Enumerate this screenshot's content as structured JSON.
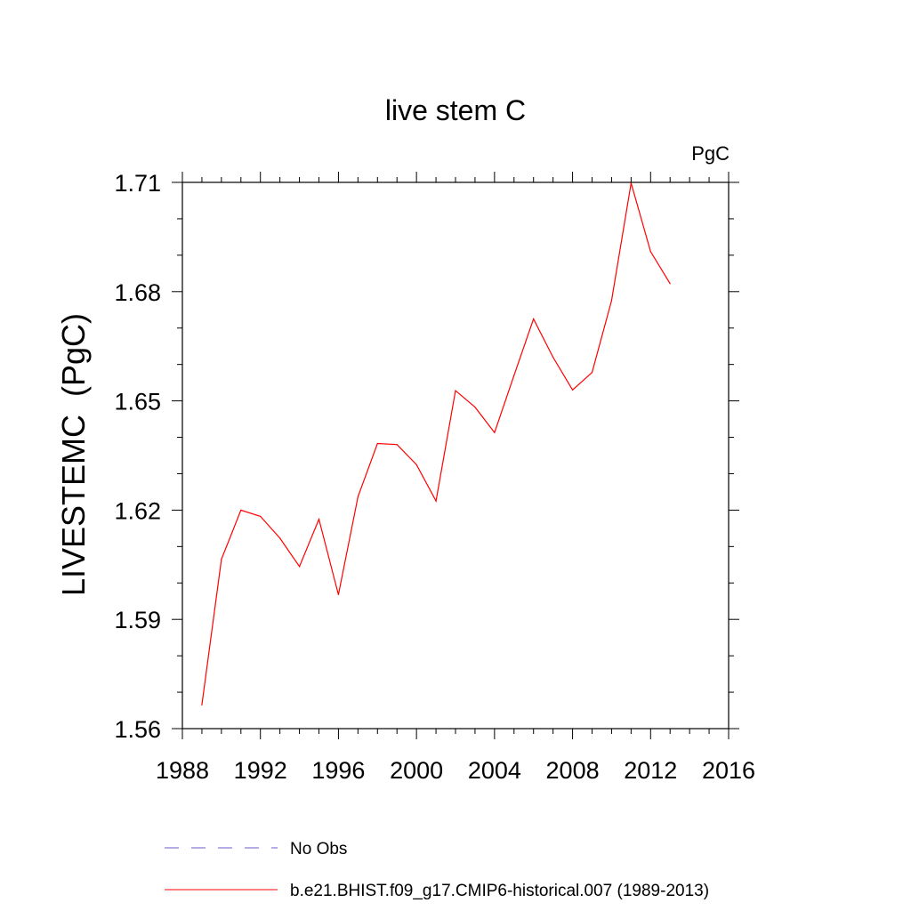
{
  "chart_data": {
    "type": "line",
    "title": "live stem C",
    "units_label": "PgC",
    "xlabel": "",
    "ylabel": "LIVESTEMC  (PgC)",
    "xlim": [
      1988,
      2016
    ],
    "ylim": [
      1.56,
      1.71
    ],
    "x_ticks": [
      1988,
      1992,
      1996,
      2000,
      2004,
      2008,
      2012,
      2016
    ],
    "y_ticks": [
      1.56,
      1.59,
      1.62,
      1.65,
      1.68,
      1.71
    ],
    "y_tick_labels": [
      "1.56",
      "1.59",
      "1.62",
      "1.65",
      "1.68",
      "1.71"
    ],
    "series": [
      {
        "name": "b.e21.BHIST.f09_g17.CMIP6-historical.007 (1989-2013)",
        "color": "#ff0000",
        "style": "solid",
        "x": [
          1989,
          1990,
          1991,
          1992,
          1993,
          1994,
          1995,
          1996,
          1997,
          1998,
          1999,
          2000,
          2001,
          2002,
          2003,
          2004,
          2005,
          2006,
          2007,
          2008,
          2009,
          2010,
          2011,
          2012,
          2013
        ],
        "y": [
          1.5665,
          1.6065,
          1.62,
          1.6183,
          1.6123,
          1.6045,
          1.6175,
          1.5968,
          1.6237,
          1.6383,
          1.638,
          1.6325,
          1.6225,
          1.6528,
          1.6483,
          1.6413,
          1.657,
          1.6725,
          1.662,
          1.653,
          1.6578,
          1.6775,
          1.7098,
          1.691,
          1.6822
        ]
      }
    ],
    "legend": [
      {
        "label": "No Obs",
        "color": "#6a5acd",
        "style": "dashed"
      },
      {
        "label": "b.e21.BHIST.f09_g17.CMIP6-historical.007 (1989-2013)",
        "color": "#ff0000",
        "style": "solid"
      }
    ],
    "legend_position": "bottom"
  }
}
